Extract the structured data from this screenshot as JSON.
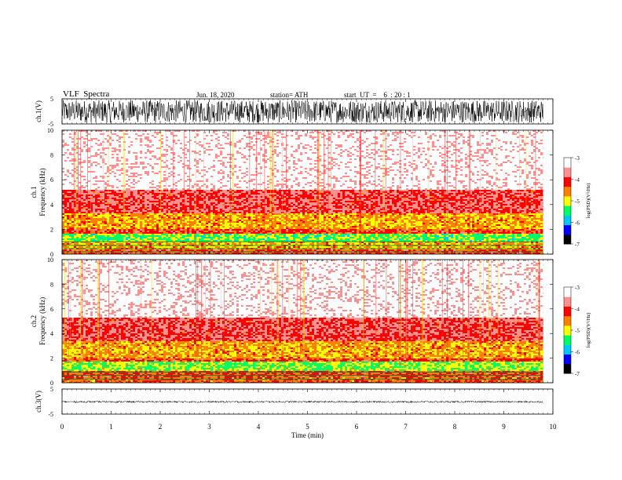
{
  "header": {
    "title": "VLF  Spectra",
    "date": "Jun. 18, 2020",
    "station": "station= ATH",
    "start_ut": "start  UT  =    6  : 20 : 1"
  },
  "chart_data": [
    {
      "type": "line",
      "name": "ch1-waveform",
      "ylabel": "ch.1(V)",
      "ylim": [
        -5,
        5
      ],
      "yticks": [
        "5",
        "-5"
      ],
      "x_extent_min": [
        0,
        9.8
      ],
      "envelope_volts": [
        -4.5,
        4.5
      ]
    },
    {
      "type": "heatmap",
      "name": "ch1-spectrogram",
      "ylabel": "ch.1",
      "ylabel2": "Frequency  (kHz)",
      "ylim": [
        0,
        10
      ],
      "yticks": [
        "0",
        "2",
        "4",
        "6",
        "8",
        "10"
      ],
      "x_extent_min": [
        0,
        9.8
      ],
      "colorbar": {
        "label": "log(PSD)(V²/Hz)",
        "range": [
          -7,
          -3
        ],
        "ticks": [
          "-3",
          "-4",
          "-5",
          "-6",
          "-7"
        ],
        "colors": [
          "#000000",
          "#0000ff",
          "#00c8ff",
          "#00ff64",
          "#ffff00",
          "#ff8000",
          "#ff0000",
          "#ff9090",
          "#ffffff"
        ]
      },
      "bands": [
        {
          "f": [
            0.0,
            0.5
          ],
          "level": -4.2
        },
        {
          "f": [
            0.5,
            1.1
          ],
          "level": -4.7
        },
        {
          "f": [
            1.1,
            1.7
          ],
          "level": -5.3
        },
        {
          "f": [
            1.7,
            2.1
          ],
          "level": -4.2
        },
        {
          "f": [
            2.1,
            3.4
          ],
          "level": -4.7
        },
        {
          "f": [
            3.4,
            5.3
          ],
          "level": -3.9
        },
        {
          "f": [
            5.3,
            10.0
          ],
          "level": -3.2
        }
      ],
      "lines_khz": [
        0.2,
        0.45,
        0.7,
        1.0
      ]
    },
    {
      "type": "heatmap",
      "name": "ch2-spectrogram",
      "ylabel": "ch.2",
      "ylabel2": "Frequency  (kHz)",
      "ylim": [
        0,
        10
      ],
      "yticks": [
        "0",
        "2",
        "4",
        "6",
        "8",
        "10"
      ],
      "x_extent_min": [
        0,
        9.8
      ],
      "colorbar": {
        "label": "log(PSD)(V²/Hz)",
        "range": [
          -7,
          -3
        ],
        "ticks": [
          "-3",
          "-4",
          "-5",
          "-6",
          "-7"
        ],
        "colors": [
          "#000000",
          "#0000ff",
          "#00c8ff",
          "#00ff64",
          "#ffff00",
          "#ff8000",
          "#ff0000",
          "#ff9090",
          "#ffffff"
        ]
      },
      "bands": [
        {
          "f": [
            0.0,
            0.5
          ],
          "level": -4.4
        },
        {
          "f": [
            0.5,
            1.0
          ],
          "level": -4.3
        },
        {
          "f": [
            1.0,
            1.8
          ],
          "level": -5.2
        },
        {
          "f": [
            1.8,
            2.1
          ],
          "level": -4.2
        },
        {
          "f": [
            2.1,
            3.4
          ],
          "level": -4.7
        },
        {
          "f": [
            3.4,
            5.3
          ],
          "level": -3.9
        },
        {
          "f": [
            5.3,
            10.0
          ],
          "level": -3.2
        }
      ],
      "lines_khz": [
        0.3,
        0.6,
        0.85
      ]
    },
    {
      "type": "line",
      "name": "ch3-waveform",
      "ylabel": "ch.3(V)",
      "ylim": [
        -5,
        5
      ],
      "yticks": [
        "5",
        "-5"
      ],
      "x_extent_min": [
        0,
        9.8
      ],
      "xlabel": "Time  (min)",
      "xlim": [
        0,
        10
      ],
      "xticks": [
        "0",
        "1",
        "2",
        "3",
        "4",
        "5",
        "6",
        "7",
        "8",
        "9",
        "10"
      ],
      "envelope_volts": [
        -0.45,
        0.25
      ]
    }
  ]
}
